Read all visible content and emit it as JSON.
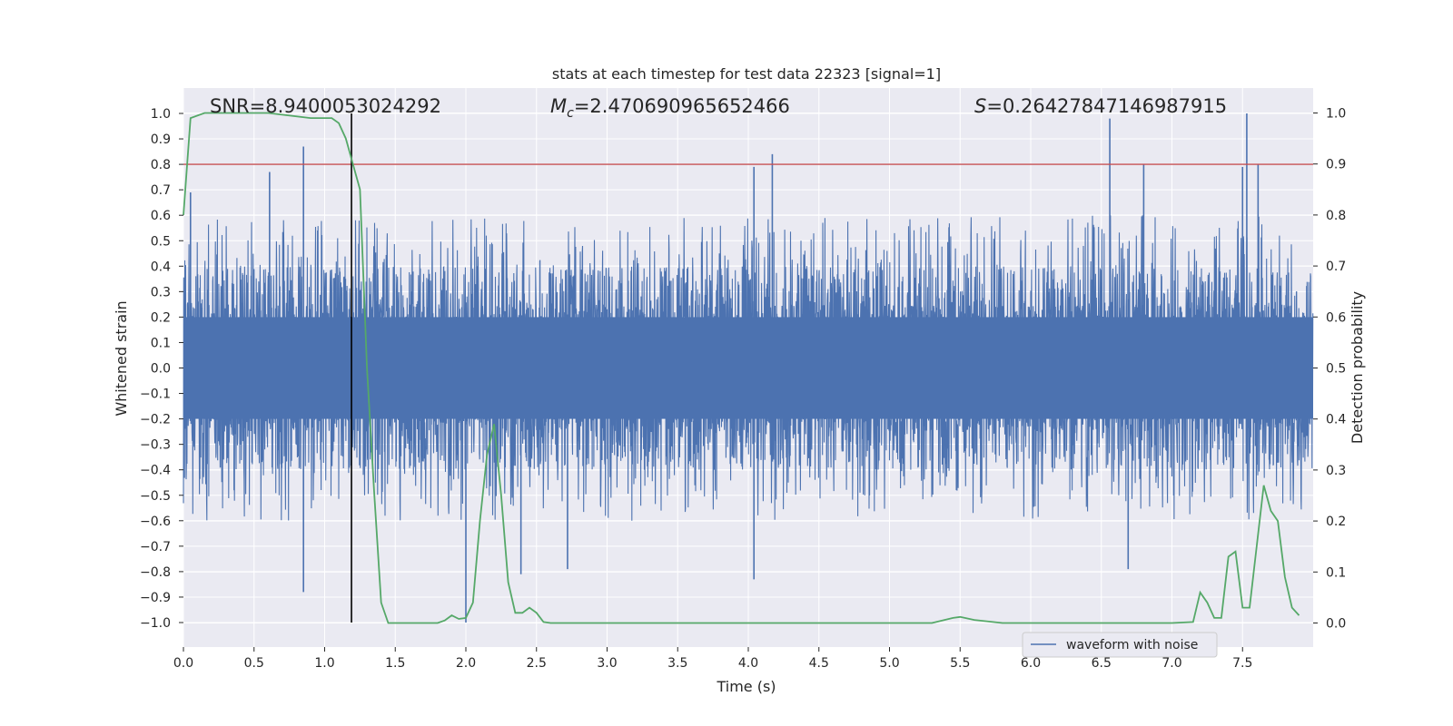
{
  "chart_data": {
    "type": "line",
    "title": "stats at each timestep for test data 22323 [signal=1]",
    "xlabel": "Time (s)",
    "ylabel": "Whitened strain",
    "ylabel_right": "Detection probability",
    "xlim": [
      0,
      8
    ],
    "ylim": [
      -1.1,
      1.1
    ],
    "ylim_right": [
      -0.05,
      1.05
    ],
    "x_ticks": [
      0.0,
      0.5,
      1.0,
      1.5,
      2.0,
      2.5,
      3.0,
      3.5,
      4.0,
      4.5,
      5.0,
      5.5,
      6.0,
      6.5,
      7.0,
      7.5
    ],
    "x_tick_labels": [
      "0.0",
      "0.5",
      "1.0",
      "1.5",
      "2.0",
      "2.5",
      "3.0",
      "3.5",
      "4.0",
      "4.5",
      "5.0",
      "5.5",
      "6.0",
      "6.5",
      "7.0",
      "7.5"
    ],
    "y_ticks": [
      -1.0,
      -0.9,
      -0.8,
      -0.7,
      -0.6,
      -0.5,
      -0.4,
      -0.3,
      -0.2,
      -0.1,
      0.0,
      0.1,
      0.2,
      0.3,
      0.4,
      0.5,
      0.6,
      0.7,
      0.8,
      0.9,
      1.0
    ],
    "y_tick_labels": [
      "−1.0",
      "−0.9",
      "−0.8",
      "−0.7",
      "−0.6",
      "−0.5",
      "−0.4",
      "−0.3",
      "−0.2",
      "−0.1",
      "0.0",
      "0.1",
      "0.2",
      "0.3",
      "0.4",
      "0.5",
      "0.6",
      "0.7",
      "0.8",
      "0.9",
      "1.0"
    ],
    "y_right_ticks": [
      0.0,
      0.1,
      0.2,
      0.3,
      0.4,
      0.5,
      0.6,
      0.7,
      0.8,
      0.9,
      1.0
    ],
    "y_right_tick_labels": [
      "0.0",
      "0.1",
      "0.2",
      "0.3",
      "0.4",
      "0.5",
      "0.6",
      "0.7",
      "0.8",
      "0.9",
      "1.0"
    ],
    "grid": true,
    "background": "#eaeaf2",
    "annotations": {
      "snr": "SNR=8.9400053024292",
      "mc": "M",
      "mc_sub": "c",
      "mc_value": "=2.470690965652466",
      "s": "S",
      "s_value": "=0.26427847146987915"
    },
    "legend": {
      "label": "waveform with noise",
      "placement": "lower-right"
    },
    "series": [
      {
        "name": "waveform with noise",
        "axis": "left",
        "color": "#4c72b0",
        "n_samples": 4096,
        "core_band": [
          -0.2,
          0.2
        ],
        "typical_peak_range": [
          -0.6,
          0.6
        ],
        "peaks": [
          {
            "x": 0.05,
            "y": 0.69
          },
          {
            "x": 0.61,
            "y": 0.77
          },
          {
            "x": 0.85,
            "y": 0.87
          },
          {
            "x": 0.85,
            "y": -0.88
          },
          {
            "x": 2.0,
            "y": -1.0
          },
          {
            "x": 2.39,
            "y": -0.81
          },
          {
            "x": 2.72,
            "y": -0.79
          },
          {
            "x": 4.04,
            "y": 0.79
          },
          {
            "x": 4.17,
            "y": 0.84
          },
          {
            "x": 4.04,
            "y": -0.83
          },
          {
            "x": 6.56,
            "y": 0.98
          },
          {
            "x": 6.69,
            "y": -0.79
          },
          {
            "x": 6.8,
            "y": 0.8
          },
          {
            "x": 7.53,
            "y": 1.0
          },
          {
            "x": 7.61,
            "y": 0.8
          },
          {
            "x": 7.5,
            "y": 0.79
          }
        ]
      },
      {
        "name": "detection probability",
        "axis": "right",
        "color": "#55a868",
        "x": [
          0.0,
          0.05,
          0.15,
          0.3,
          0.6,
          0.9,
          1.05,
          1.1,
          1.15,
          1.2,
          1.25,
          1.3,
          1.35,
          1.4,
          1.45,
          1.5,
          1.6,
          1.7,
          1.8,
          1.85,
          1.9,
          1.95,
          2.0,
          2.05,
          2.1,
          2.15,
          2.2,
          2.25,
          2.3,
          2.35,
          2.4,
          2.45,
          2.5,
          2.55,
          2.6,
          2.7,
          2.8,
          3.0,
          3.3,
          3.6,
          4.0,
          4.3,
          4.6,
          5.0,
          5.3,
          5.45,
          5.5,
          5.6,
          5.8,
          6.0,
          6.3,
          6.6,
          7.0,
          7.15,
          7.2,
          7.25,
          7.3,
          7.35,
          7.4,
          7.45,
          7.5,
          7.55,
          7.6,
          7.65,
          7.7,
          7.75,
          7.8,
          7.85,
          7.9
        ],
        "y": [
          0.8,
          0.99,
          1.0,
          1.0,
          1.0,
          0.99,
          0.99,
          0.98,
          0.95,
          0.9,
          0.85,
          0.5,
          0.26,
          0.04,
          0.0,
          0.0,
          0.0,
          0.0,
          0.0,
          0.005,
          0.015,
          0.008,
          0.01,
          0.04,
          0.2,
          0.33,
          0.39,
          0.25,
          0.08,
          0.02,
          0.02,
          0.03,
          0.02,
          0.002,
          0.0,
          0.0,
          0.0,
          0.0,
          0.0,
          0.0,
          0.0,
          0.0,
          0.0,
          0.0,
          0.0,
          0.01,
          0.012,
          0.006,
          0.0,
          0.0,
          0.0,
          0.0,
          0.0,
          0.002,
          0.06,
          0.04,
          0.01,
          0.01,
          0.13,
          0.14,
          0.03,
          0.03,
          0.15,
          0.27,
          0.22,
          0.2,
          0.09,
          0.03,
          0.015
        ]
      }
    ],
    "hline": {
      "y": 0.8,
      "axis": "left",
      "color": "#c44e52"
    },
    "vline": {
      "x": 1.19,
      "y_range": [
        -1.0,
        1.0
      ],
      "color": "#000000"
    }
  }
}
